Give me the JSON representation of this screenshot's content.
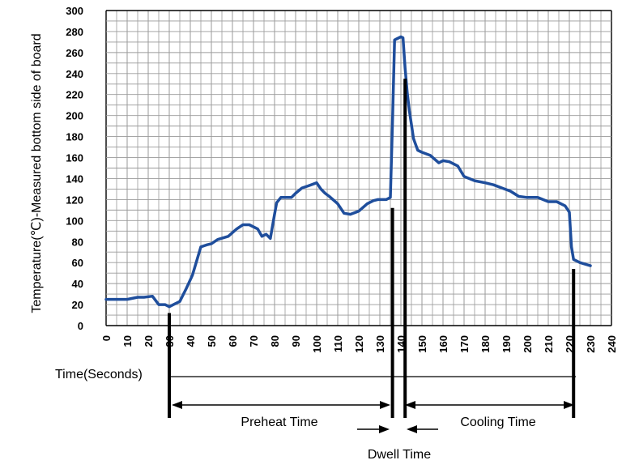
{
  "chart_data": {
    "type": "line",
    "title": "",
    "ylabel": "Temperature(℃)-Measured bottom side of board",
    "xlabel": "Time(Seconds)",
    "xlim": [
      0,
      240
    ],
    "ylim": [
      0,
      300
    ],
    "x_ticks": [
      0,
      10,
      20,
      30,
      40,
      50,
      60,
      70,
      80,
      90,
      100,
      110,
      120,
      130,
      140,
      150,
      160,
      170,
      180,
      190,
      200,
      210,
      220,
      230,
      240
    ],
    "y_ticks": [
      0,
      20,
      40,
      60,
      80,
      100,
      120,
      140,
      160,
      180,
      200,
      220,
      240,
      260,
      280,
      300
    ],
    "grid": true,
    "series_color": "#1f4e9c",
    "series": [
      {
        "x": [
          0,
          5,
          10,
          15,
          18,
          22,
          25,
          28,
          30,
          32,
          35,
          38,
          41,
          45,
          48,
          50,
          53,
          58,
          62,
          65,
          68,
          72,
          74,
          76,
          78,
          80,
          81,
          83,
          85,
          88,
          90,
          93,
          96,
          100,
          102,
          104,
          106,
          110,
          113,
          116,
          120,
          124,
          127,
          129,
          130,
          133,
          135,
          136,
          137,
          138,
          140,
          141,
          142,
          143,
          144,
          146,
          148,
          150,
          154,
          158,
          160,
          163,
          165,
          167,
          170,
          175,
          180,
          184,
          188,
          192,
          196,
          200,
          205,
          210,
          214,
          218,
          220,
          221,
          222,
          225,
          230
        ],
        "y": [
          25,
          25,
          25,
          27,
          27,
          28,
          20,
          20,
          18,
          20,
          23,
          35,
          48,
          75,
          77,
          78,
          82,
          85,
          92,
          96,
          96,
          92,
          85,
          87,
          83,
          106,
          117,
          122,
          122,
          122,
          126,
          131,
          133,
          136,
          130,
          126,
          123,
          116,
          107,
          106,
          109,
          116,
          119,
          120,
          120,
          120,
          122,
          193,
          272,
          273,
          275,
          274,
          245,
          222,
          205,
          178,
          167,
          165,
          162,
          155,
          157,
          156,
          154,
          152,
          142,
          138,
          136,
          134,
          131,
          128,
          123,
          122,
          122,
          118,
          118,
          114,
          108,
          75,
          63,
          60,
          57
        ]
      }
    ],
    "markers": [
      {
        "x": 30,
        "y_top": 12
      },
      {
        "x": 136,
        "y_top": 112
      },
      {
        "x": 142,
        "y_top": 235
      },
      {
        "x": 222,
        "y_top": 54
      }
    ],
    "annotations": {
      "preheat": "Preheat Time",
      "cooling": "Cooling Time",
      "dwell": "Dwell Time"
    }
  }
}
